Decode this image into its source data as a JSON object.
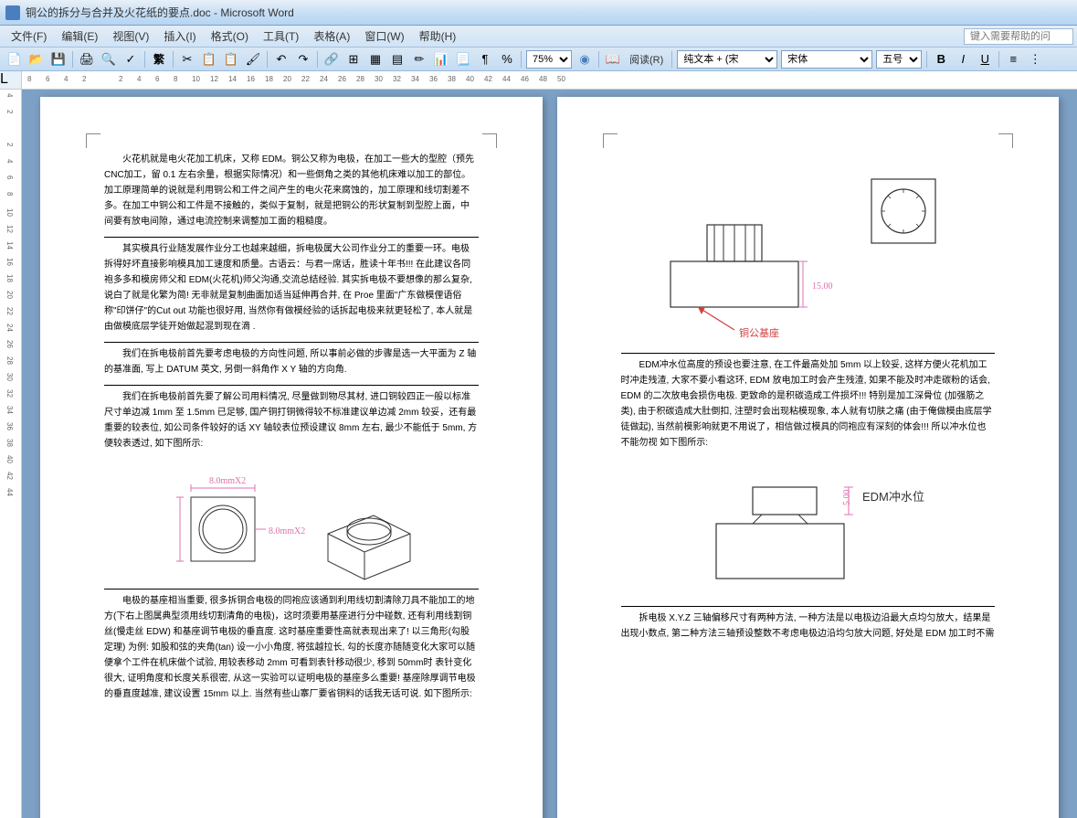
{
  "window": {
    "title": "铜公的拆分与合并及火花纸的要点.doc - Microsoft Word"
  },
  "menu": {
    "items": [
      "文件(F)",
      "编辑(E)",
      "视图(V)",
      "插入(I)",
      "格式(O)",
      "工具(T)",
      "表格(A)",
      "窗口(W)",
      "帮助(H)"
    ],
    "search_placeholder": "键入需要帮助的问"
  },
  "toolbar": {
    "zoom": "75%",
    "reading": "阅读(R)",
    "style": "纯文本 + (宋",
    "font": "宋体",
    "size": "五号",
    "icons": {
      "new": "📄",
      "open": "📂",
      "save": "💾",
      "print": "🖨",
      "preview": "🔍",
      "abc": "✓",
      "cut": "✂",
      "copy": "📋",
      "paste": "📋",
      "fan": "繁",
      "brush": "🖌",
      "undo": "↶",
      "redo": "↷",
      "link": "🔗",
      "grid": "⊞",
      "table": "▦",
      "cols": "▤",
      "para": "¶",
      "drawing": "✏",
      "chart": "📊",
      "doc": "📃",
      "percent": "%",
      "book": "📖",
      "bold": "B",
      "italic": "I",
      "underline": "U",
      "align": "≡",
      "more": "⋮"
    }
  },
  "ruler": {
    "h_marks": [
      8,
      6,
      4,
      2,
      "",
      2,
      4,
      6,
      8,
      10,
      12,
      14,
      16,
      18,
      20,
      22,
      24,
      26,
      28,
      30,
      32,
      34,
      36,
      38,
      40,
      42,
      44,
      46,
      48,
      50
    ],
    "v_marks": [
      4,
      2,
      "",
      2,
      4,
      6,
      8,
      10,
      12,
      14,
      16,
      18,
      20,
      22,
      24,
      26,
      28,
      30,
      32,
      34,
      36,
      38,
      40,
      42,
      44
    ]
  },
  "page1": {
    "p1": "火花机就是电火花加工机床，又称 EDM。铜公又称为电极，在加工一些大的型腔（预先 CNC加工，留 0.1 左右余量，根据实际情况）和一些倒角之类的其他机床难以加工的部位。加工原理简单的说就是利用铜公和工件之间产生的电火花来腐蚀的，加工原理和线切割差不多。在加工中铜公和工件是不接触的，类似于复制，就是把铜公的形状复制到型腔上面，中间要有放电间隙，通过电流控制来调整加工面的粗糙度。",
    "p2": "其实模具行业随发展作业分工也越来越细，拆电极属大公司作业分工的重要一环。电极拆得好坏直接影响模具加工速度和质量。古语云：与君一席话，胜读十年书!!! 在此建议各同袍多多和模房师父和 EDM(火花机)师父沟通,交流总结经验. 其实拆电极不要想像的那么复杂,说白了就是化繁为简! 无非就是复制曲面加适当延伸再合并, 在 Proe 里面\"广东做模俚语俗称\"印饼仔\"的Cut out 功能也很好用, 当然你有做模经验的话拆起电极来就更轻松了, 本人就是由做模底层学徒开始做起混到现在滴 . ",
    "p3": "我们在拆电极前首先要考虑电极的方向性问题, 所以事前必做的步骤是选一大平面为 Z 轴的基准面, 写上 DATUM 英文, 另倒一斜角作 X Y 轴的方向角. ",
    "p4": "我们在拆电极前首先要了解公司用料情况, 尽量做到物尽其材, 进口铜较四正一般以标准尺寸单边减 1mm 至 1.5mm 已足够, 国产铜打铜微得较不标准建议单边减 2mm 较妥，还有最重要的较表位, 如公司条件较好的话 XY 轴较表位预设建议 8mm 左右, 最少不能低于 5mm, 方便较表透过, 如下图所示: ",
    "fig1": {
      "label1": "8.0mmX2",
      "label2": "8.0mmX2",
      "color": "#e070b0"
    },
    "p5": "    电极的基座相当重要, 很多拆铜合电极的同袍应该通到利用线切割清除刀具不能加工的地方(下右上图属典型须用线切割清角的电极)，这时须要用基座进行分中碰数, 还有利用线割铜丝(慢走丝 EDW) 和基座调节电极的垂直度. 这时基座重要性高就表现出来了! 以三角形(勾股定理) 为例: 如股和弦的夹角(tan) 设一小小角度, 将弦越拉长, 勾的长度亦随随变化大家可以随便拿个工件在机床做个试验, 用较表移动 2mm 可看到表针移动很少, 移到 50mm时 表针变化很大, 证明角度和长度关系很密, 从这一实验可以证明电极的基座多么重要! 基座除厚调节电极的垂直度越准, 建议设置 15mm 以上. 当然有些山寨厂要省铜料的话我无话可说. 如下图所示: "
  },
  "page2": {
    "fig2": {
      "label_dim": "15.00",
      "label_base": "铜公基座",
      "dim_color": "#e070b0",
      "base_color": "#d04040"
    },
    "p1": "    EDM冲水位高度的预设也要注意, 在工件最高处加 5mm 以上较妥, 这样方便火花机加工时冲走残渣, 大家不要小看这环, EDM 放电加工时会产生残渣, 如果不能及时冲走碳粉的话会, EDM 的二次放电会损伤电极. 更致命的是积碳造成工件损坏!!! 特别是加工深骨位 (加强筋之类), 由于积碳造成大肚倒扣, 注塑时会出现粘模现象, 本人就有切肤之痛 (由于俺做模由底层学徒做起), 当然前模影响就更不用说了，相信做过模具的同袍应有深刻的体会!!! 所以冲水位也不能勿视 如下图所示: ",
    "fig3": {
      "label_dim": "5.00",
      "label_text": "EDM冲水位",
      "dim_color": "#e070b0",
      "text_color": "#333"
    },
    "p2": "    拆电极 X.Y.Z 三轴偏移尺寸有两种方法, 一种方法是以电极边沿最大点均匀放大，结果是出现小数点, 第二种方法三轴预设整数不考虑电极边沿均匀放大问题, 好处是 EDM 加工时不需"
  },
  "colors": {
    "page_bg": "#ffffff",
    "workspace_bg": "#7da0c5",
    "titlebar": "#c8dff5",
    "toolbar": "#c4dcf2"
  }
}
